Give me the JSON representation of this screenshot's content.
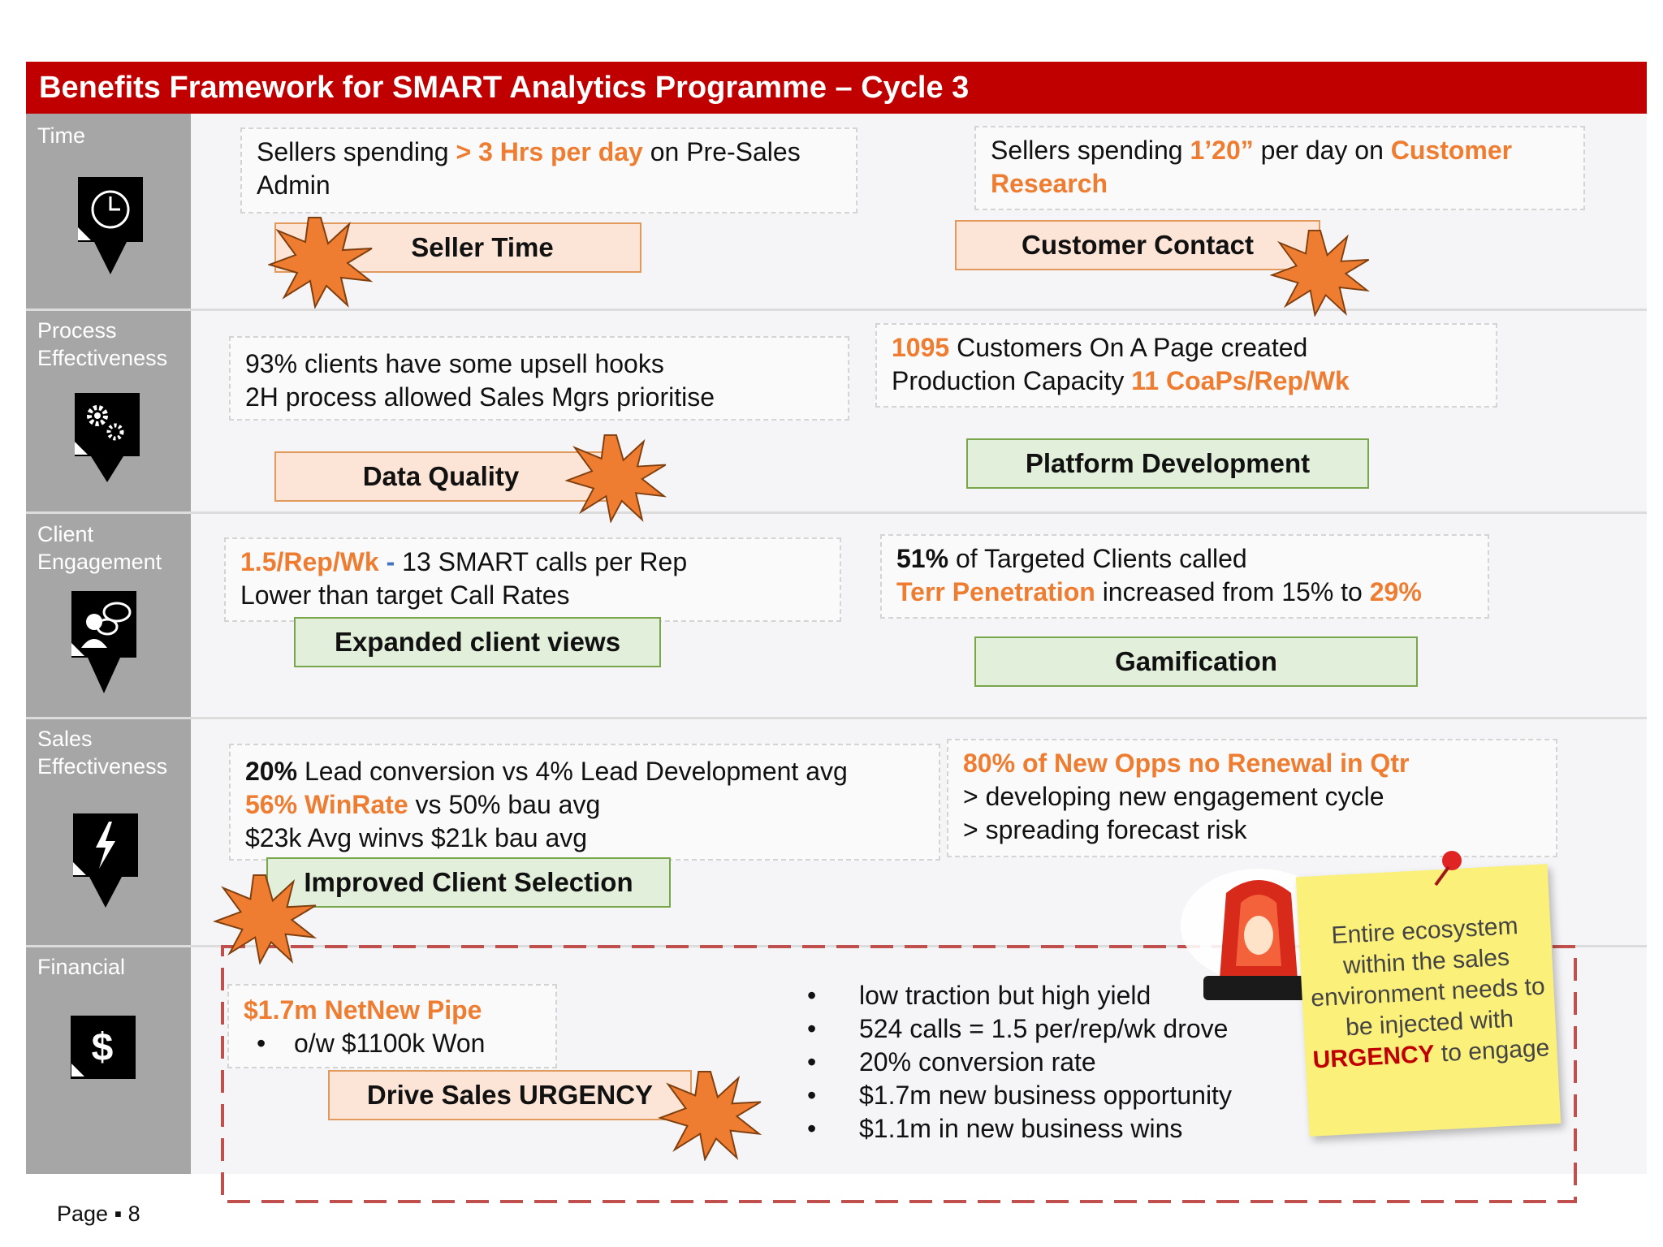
{
  "title": "Benefits Framework for SMART Analytics Programme – Cycle 3",
  "rows": {
    "time": {
      "label": "Time",
      "box1": {
        "p1": "Sellers spending ",
        "p2": "> 3 Hrs per day",
        "p3": " on Pre-Sales Admin"
      },
      "box2": {
        "p1": "Sellers spending ",
        "p2": "1’20”",
        "p3": " per day on ",
        "p4": "Customer Research"
      },
      "label1": "Seller Time",
      "label2": "Customer Contact"
    },
    "process": {
      "label": "Process Effectiveness",
      "box1": {
        "l1": "93% clients have some upsell hooks",
        "l2": "2H process allowed Sales Mgrs prioritise"
      },
      "box2": {
        "v1": "1095",
        "t1": " Customers On A Page created",
        "t2": "Production Capacity ",
        "v2": "11 CoaPs/Rep/Wk"
      },
      "label1": "Data Quality",
      "label2": "Platform Development"
    },
    "client": {
      "label": "Client Engagement",
      "box1": {
        "v1": "1.5/Rep/Wk",
        "dash": " - ",
        "t1": "13 SMART calls per Rep",
        "l2": "Lower than target Call Rates"
      },
      "box2": {
        "v1": "51%",
        "t1": " of Targeted Clients called",
        "v2": "Terr Penetration",
        "t2": " increased from 15% to ",
        "v3": "29%"
      },
      "label1": "Expanded client views",
      "label2": "Gamification"
    },
    "sales": {
      "label": "Sales Effectiveness",
      "box1": {
        "v1": "20%",
        "t1": " Lead conversion vs 4% Lead Development avg",
        "v2": "56% WinRate",
        "t2": " vs 50% bau avg",
        "l3": "$23k Avg winvs $21k bau avg"
      },
      "box2": {
        "l1": "80% of New Opps no Renewal in Qtr",
        "l2": "> developing new engagement cycle",
        "l3": "> spreading forecast risk"
      },
      "label1": "Improved Client Selection"
    },
    "financial": {
      "label": "Financial",
      "box1": {
        "l1": "$1.7m NetNew Pipe",
        "l2": "o/w $1100k Won"
      },
      "label1": "Drive Sales URGENCY",
      "bullets": [
        "low traction but high yield",
        "524 calls = 1.5 per/rep/wk drove",
        "20% conversion rate",
        "$1.7m new business opportunity",
        "$1.1m in new business wins"
      ]
    }
  },
  "note": {
    "l1": "Entire ecosystem within the sales environment needs to be injected with",
    "urgency": "URGENCY",
    "l2": " to engage"
  },
  "footer": {
    "page_label": "Page",
    "page_number": "8"
  },
  "colors": {
    "title_bar": "#c00000",
    "accent_orange": "#ee7d31",
    "label_grey": "#a6a6a6",
    "peach": "#fce4d6",
    "green": "#e2efda"
  }
}
